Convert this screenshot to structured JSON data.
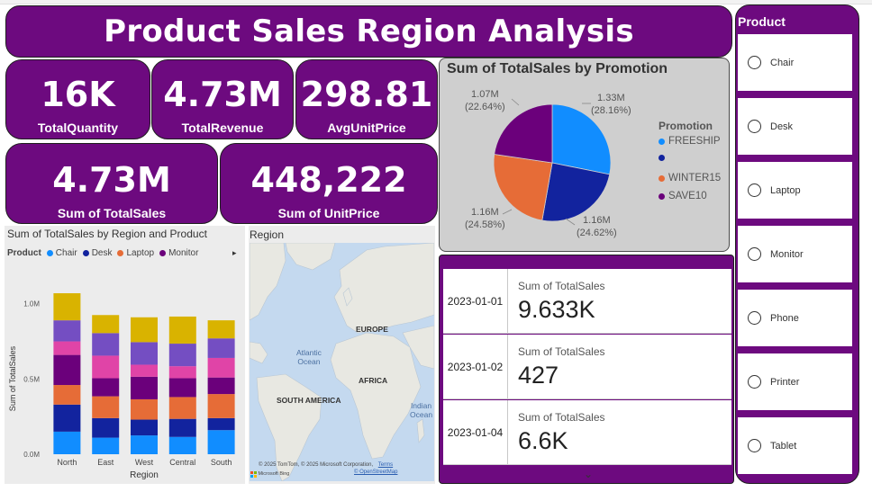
{
  "dashboard": {
    "title": "Product Sales Region Analysis"
  },
  "kpis": {
    "total_quantity": {
      "value": "16K",
      "label": "TotalQuantity"
    },
    "total_revenue": {
      "value": "4.73M",
      "label": "TotalRevenue"
    },
    "avg_unit_price": {
      "value": "298.81",
      "label": "AvgUnitPrice"
    },
    "sum_total_sales": {
      "value": "4.73M",
      "label": "Sum of TotalSales"
    },
    "sum_unit_price": {
      "value": "448,222",
      "label": "Sum of UnitPrice"
    }
  },
  "pie": {
    "title": "Sum of TotalSales by Promotion",
    "legend_title": "Promotion",
    "labels": {
      "freeship": {
        "value": "1.33M",
        "pct": "(28.16%)"
      },
      "blank": {
        "value": "1.16M",
        "pct": "(24.62%)"
      },
      "winter15": {
        "value": "1.16M",
        "pct": "(24.58%)"
      },
      "save10": {
        "value": "1.07M",
        "pct": "(22.64%)"
      }
    },
    "legend": [
      "FREESHIP",
      "",
      "WINTER15",
      "SAVE10"
    ]
  },
  "bar": {
    "title": "Sum of TotalSales by Region and Product",
    "legend_title": "Product",
    "legend": [
      "Chair",
      "Desk",
      "Laptop",
      "Monitor"
    ],
    "more_icon": "▸"
  },
  "map": {
    "title": "Region",
    "labels": {
      "europe": "EUROPE",
      "africa": "AFRICA",
      "south_america": "SOUTH AMERICA",
      "atlantic": "Atlantic",
      "atlantic2": "Ocean",
      "indian": "Indian",
      "indian2": "Ocean"
    },
    "copyright": "© 2025 TomTom, © 2025 Microsoft Corporation,",
    "terms": "Terms",
    "osm": "© OpenStreetMap",
    "bing": "Microsoft Bing"
  },
  "dates": {
    "metric_label": "Sum of TotalSales",
    "rows": [
      {
        "date": "2023-01-01",
        "value": "9.633K"
      },
      {
        "date": "2023-01-02",
        "value": "427"
      },
      {
        "date": "2023-01-04",
        "value": "6.6K"
      }
    ],
    "scroll_icon": "⌄"
  },
  "slicer": {
    "title": "Product",
    "items": [
      "Chair",
      "Desk",
      "Laptop",
      "Monitor",
      "Phone",
      "Printer",
      "Tablet"
    ]
  },
  "colors": {
    "purple": "#6d0a7f",
    "freeship": "#118dff",
    "blank": "#12239e",
    "winter15": "#e66c37",
    "save10": "#6b007b",
    "chair": "#118dff",
    "desk": "#12239e",
    "laptop": "#e66c37",
    "monitor": "#6b007b",
    "phone": "#e044a7",
    "printer": "#744ec2",
    "tablet": "#d9b300"
  },
  "chart_data": [
    {
      "type": "pie",
      "title": "Sum of TotalSales by Promotion",
      "legend_title": "Promotion",
      "categories": [
        "FREESHIP",
        "",
        "WINTER15",
        "SAVE10"
      ],
      "values": [
        1330000,
        1160000,
        1160000,
        1070000
      ],
      "percentages": [
        28.16,
        24.62,
        24.58,
        22.64
      ],
      "legend": "right"
    },
    {
      "type": "bar",
      "stacked": true,
      "title": "Sum of TotalSales by Region and Product",
      "xlabel": "Region",
      "ylabel": "Sum of TotalSales",
      "categories": [
        "North",
        "East",
        "West",
        "Central",
        "South"
      ],
      "ylim": [
        0,
        1100000
      ],
      "yticks": [
        "0.0M",
        "0.5M",
        "1.0M"
      ],
      "series": [
        {
          "name": "Chair",
          "values": [
            150000,
            110000,
            125000,
            115000,
            160000
          ]
        },
        {
          "name": "Desk",
          "values": [
            180000,
            130000,
            105000,
            120000,
            80000
          ]
        },
        {
          "name": "Laptop",
          "values": [
            130000,
            145000,
            135000,
            145000,
            160000
          ]
        },
        {
          "name": "Monitor",
          "values": [
            200000,
            120000,
            150000,
            125000,
            110000
          ]
        },
        {
          "name": "Phone",
          "values": [
            90000,
            150000,
            80000,
            80000,
            130000
          ]
        },
        {
          "name": "Printer",
          "values": [
            140000,
            150000,
            150000,
            150000,
            130000
          ]
        },
        {
          "name": "Tablet",
          "values": [
            180000,
            120000,
            165000,
            180000,
            120000
          ]
        }
      ],
      "legend": "top-left",
      "grid": false
    }
  ]
}
